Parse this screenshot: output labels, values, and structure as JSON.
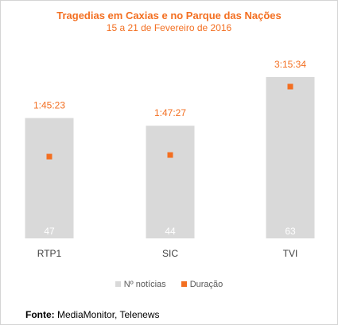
{
  "chart_data": {
    "type": "bar",
    "title": "Tragedias em Caxias e no Parque das Nações",
    "subtitle": "15 a 21 de Fevereiro de 2016",
    "categories": [
      "RTP1",
      "SIC",
      "TVI"
    ],
    "series": [
      {
        "name": "Nº notícias",
        "kind": "bar",
        "values": [
          47,
          44,
          63
        ],
        "labels": [
          "47",
          "44",
          "63"
        ],
        "color": "#d9d9d9"
      },
      {
        "name": "Duração",
        "kind": "point",
        "values_seconds": [
          6323,
          6447,
          11734
        ],
        "labels": [
          "1:45:23",
          "1:47:27",
          "3:15:34"
        ],
        "color": "#f36f21"
      }
    ],
    "legend_position": "bottom",
    "grid": false,
    "ylim_bars": [
      0,
      70
    ],
    "ylim_points": [
      0,
      14000
    ]
  },
  "source": {
    "label": "Fonte:",
    "text": "MediaMonitor, Telenews"
  }
}
